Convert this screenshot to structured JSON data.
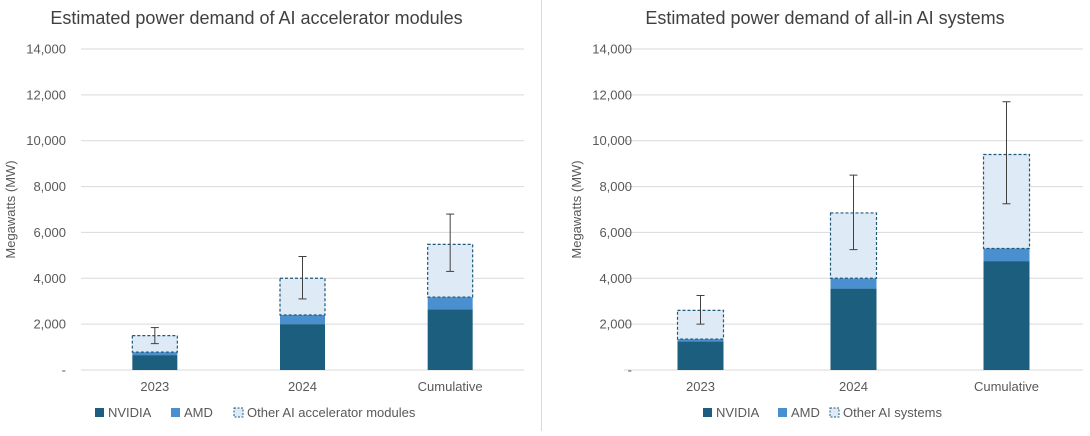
{
  "colors": {
    "nvidia": "#1b5e7e",
    "amd": "#4a90d0",
    "other_fill": "#deebf7",
    "other_stroke": "#1f5a7a",
    "grid": "#d9d9d9",
    "text": "#595959",
    "title": "#404040"
  },
  "chart_data": [
    {
      "type": "bar",
      "stacked": true,
      "title": "Estimated power demand of AI accelerator modules",
      "ylabel": "Megawatts (MW)",
      "xlabel": "",
      "ylim": [
        0,
        14000
      ],
      "yticks": [
        0,
        2000,
        4000,
        6000,
        8000,
        10000,
        12000,
        14000
      ],
      "ytick_labels": [
        "-",
        "2,000",
        "4,000",
        "6,000",
        "8,000",
        "10,000",
        "12,000",
        "14,000"
      ],
      "grid": true,
      "legend": "bottom",
      "categories": [
        "2023",
        "2024",
        "Cumulative"
      ],
      "series": [
        {
          "name": "NVIDIA",
          "key": "nvidia",
          "values": [
            650,
            2000,
            2650
          ]
        },
        {
          "name": "AMD",
          "key": "amd",
          "values": [
            130,
            400,
            530
          ]
        },
        {
          "name": "Other AI accelerator modules",
          "key": "other",
          "dashed": true,
          "values": [
            720,
            1600,
            2300
          ]
        }
      ],
      "error_bars": [
        [
          1150,
          1850
        ],
        [
          3100,
          4950
        ],
        [
          4300,
          6800
        ]
      ]
    },
    {
      "type": "bar",
      "stacked": true,
      "title": "Estimated power demand of all-in AI systems",
      "ylabel": "Megawatts (MW)",
      "xlabel": "",
      "ylim": [
        0,
        14000
      ],
      "yticks": [
        0,
        2000,
        4000,
        6000,
        8000,
        10000,
        12000,
        14000
      ],
      "ytick_labels": [
        "-",
        "2,000",
        "4,000",
        "6,000",
        "8,000",
        "10,000",
        "12,000",
        "14,000"
      ],
      "grid": true,
      "legend": "bottom",
      "categories": [
        "2023",
        "2024",
        "Cumulative"
      ],
      "series": [
        {
          "name": "NVIDIA",
          "key": "nvidia",
          "values": [
            1250,
            3550,
            4750
          ]
        },
        {
          "name": "AMD",
          "key": "amd",
          "values": [
            100,
            450,
            550
          ]
        },
        {
          "name": "Other AI systems",
          "key": "other",
          "dashed": true,
          "values": [
            1250,
            2850,
            4100
          ]
        }
      ],
      "error_bars": [
        [
          2000,
          3250
        ],
        [
          5250,
          8500
        ],
        [
          7250,
          11700
        ]
      ]
    }
  ]
}
